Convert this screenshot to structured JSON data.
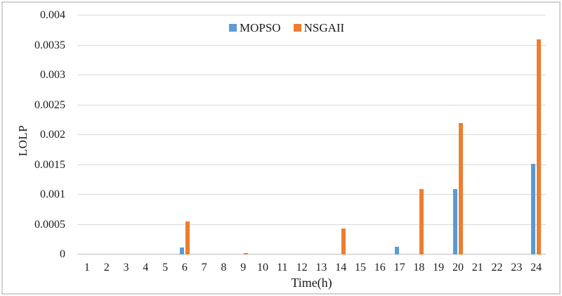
{
  "chart_data": {
    "type": "bar",
    "title": "",
    "xlabel": "Time(h)",
    "ylabel": "LOLP",
    "categories": [
      "1",
      "2",
      "3",
      "4",
      "5",
      "6",
      "7",
      "8",
      "9",
      "10",
      "11",
      "12",
      "13",
      "14",
      "15",
      "16",
      "17",
      "18",
      "19",
      "20",
      "21",
      "22",
      "23",
      "24"
    ],
    "series": [
      {
        "name": "MOPSO",
        "color": "#5B9BD5",
        "values": [
          0,
          0,
          0,
          0,
          0,
          0.00012,
          0,
          0,
          0,
          0,
          0,
          0,
          0,
          0,
          0,
          0,
          0.00013,
          0,
          0,
          0.0011,
          0,
          0,
          0,
          0.00152
        ]
      },
      {
        "name": "NSGAII",
        "color": "#ED7D31",
        "values": [
          0,
          0,
          0,
          0,
          0,
          0.00055,
          0,
          0,
          2e-05,
          0,
          0,
          0,
          0,
          0.00044,
          0,
          0,
          0,
          0.0011,
          0,
          0.0022,
          0,
          0,
          0,
          0.0036
        ]
      }
    ],
    "ylim": [
      0,
      0.004
    ],
    "ytick_step": 0.0005,
    "ytick_labels": [
      "0",
      "0.0005",
      "0.001",
      "0.0015",
      "0.002",
      "0.0025",
      "0.003",
      "0.0035",
      "0.004"
    ],
    "grid": true,
    "legend_position": "top-center",
    "gridline_color": "#d9d9d9",
    "axis_line_color": "#bfbfbf"
  }
}
